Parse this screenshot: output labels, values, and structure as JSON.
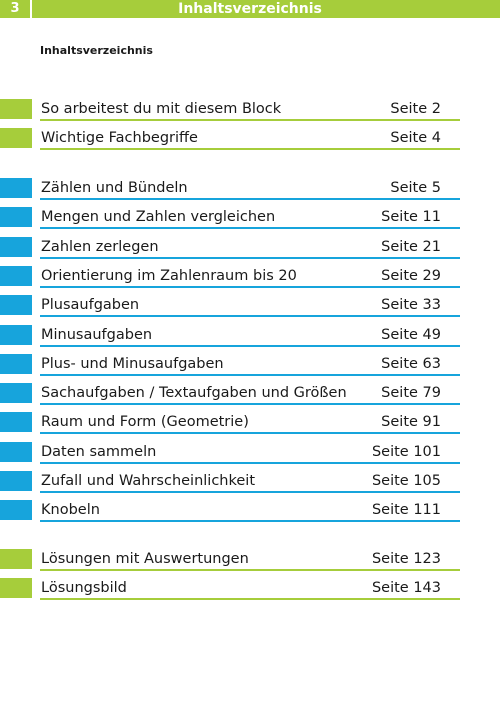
{
  "colors": {
    "green": "#a6cd3b",
    "blue": "#17a4dc"
  },
  "header": {
    "page_number": "3",
    "title": "Inhaltsverzeichnis"
  },
  "toc_heading": "Inhaltsverzeichnis",
  "sections": [
    {
      "color": "green",
      "items": [
        {
          "title": "So arbeitest du mit diesem Block",
          "page": "Seite 2"
        },
        {
          "title": "Wichtige Fachbegriffe",
          "page": "Seite 4"
        }
      ]
    },
    {
      "color": "blue",
      "items": [
        {
          "title": "Zählen und Bündeln",
          "page": "Seite 5"
        },
        {
          "title": "Mengen und Zahlen vergleichen",
          "page": "Seite 11"
        },
        {
          "title": "Zahlen zerlegen",
          "page": "Seite 21"
        },
        {
          "title": "Orientierung im Zahlenraum bis 20",
          "page": "Seite 29"
        },
        {
          "title": "Plusaufgaben",
          "page": "Seite 33"
        },
        {
          "title": "Minusaufgaben",
          "page": "Seite 49"
        },
        {
          "title": "Plus- und Minusaufgaben",
          "page": "Seite 63"
        },
        {
          "title": "Sachaufgaben / Textaufgaben und Größen",
          "page": "Seite 79"
        },
        {
          "title": "Raum und Form (Geometrie)",
          "page": "Seite 91"
        },
        {
          "title": "Daten sammeln",
          "page": "Seite 101"
        },
        {
          "title": "Zufall und Wahrscheinlichkeit",
          "page": "Seite 105"
        },
        {
          "title": "Knobeln",
          "page": "Seite 111"
        }
      ]
    },
    {
      "color": "green",
      "items": [
        {
          "title": "Lösungen mit Auswertungen",
          "page": "Seite 123"
        },
        {
          "title": "Lösungsbild",
          "page": "Seite 143"
        }
      ]
    }
  ]
}
